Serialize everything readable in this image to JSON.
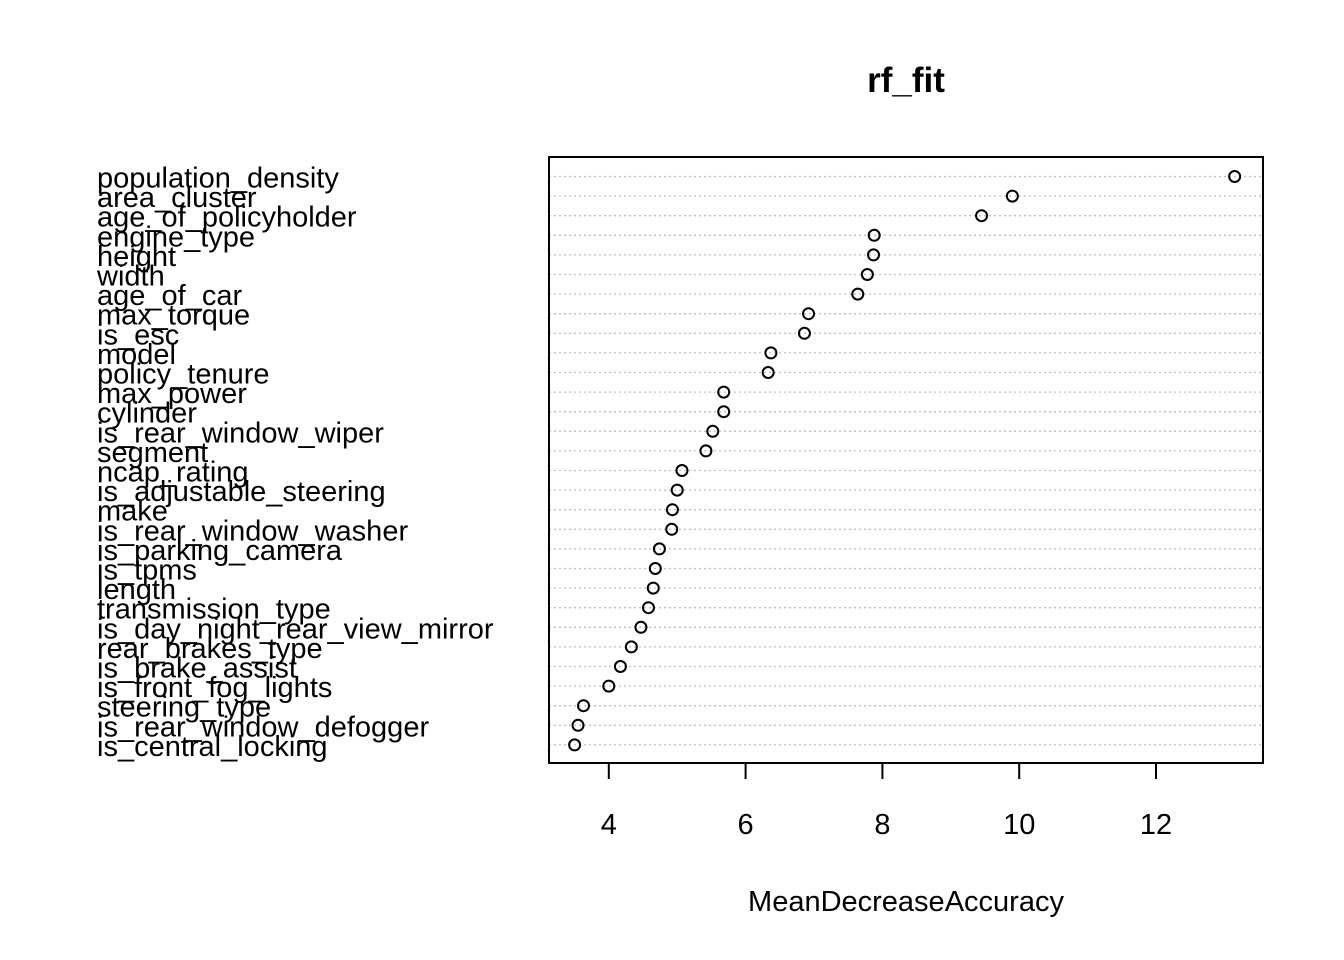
{
  "chart_data": {
    "type": "scatter",
    "title": "rf_fit",
    "xlabel": "MeanDecreaseAccuracy",
    "ylabel": "",
    "xlim": [
      3.5,
      13.1
    ],
    "xticks": [
      4,
      6,
      8,
      10,
      12
    ],
    "grid": "horizontal dotted",
    "categories": [
      "population_density",
      "area_cluster",
      "age_of_policyholder",
      "engine_type",
      "height",
      "width",
      "age_of_car",
      "max_torque",
      "is_esc",
      "model",
      "policy_tenure",
      "max_power",
      "cylinder",
      "is_rear_window_wiper",
      "segment",
      "ncap_rating",
      "is_adjustable_steering",
      "make",
      "is_rear_window_washer",
      "is_parking_camera",
      "is_tpms",
      "length",
      "transmission_type",
      "is_day_night_rear_view_mirror",
      "rear_brakes_type",
      "is_brake_assist",
      "is_front_fog_lights",
      "steering_type",
      "is_rear_window_defogger",
      "is_central_locking"
    ],
    "values": [
      13.15,
      9.9,
      9.45,
      7.88,
      7.87,
      7.78,
      7.64,
      6.92,
      6.86,
      6.37,
      6.33,
      5.68,
      5.68,
      5.52,
      5.42,
      5.07,
      5.0,
      4.93,
      4.92,
      4.74,
      4.68,
      4.65,
      4.58,
      4.47,
      4.33,
      4.17,
      4.0,
      3.63,
      3.55,
      3.5
    ]
  }
}
